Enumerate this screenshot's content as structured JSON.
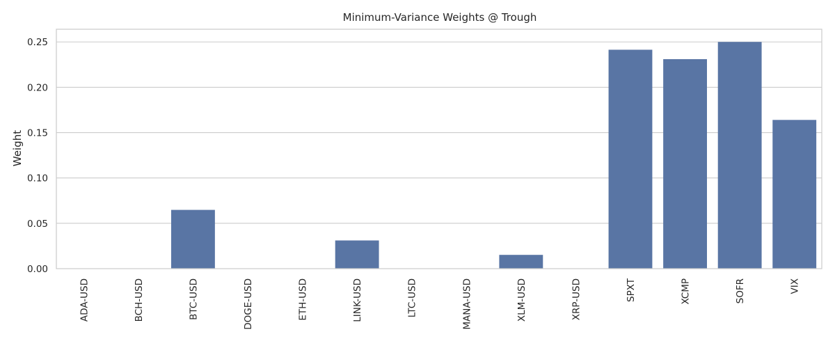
{
  "chart_data": {
    "type": "bar",
    "title": "Minimum-Variance Weights @ Trough",
    "xlabel": "",
    "ylabel": "Weight",
    "categories": [
      "ADA-USD",
      "BCH-USD",
      "BTC-USD",
      "DOGE-USD",
      "ETH-USD",
      "LINK-USD",
      "LTC-USD",
      "MANA-USD",
      "XLM-USD",
      "XRP-USD",
      "SPXT",
      "XCMP",
      "SOFR",
      "VIX"
    ],
    "values": [
      0.0,
      0.0,
      0.0648,
      0.0,
      0.0,
      0.0311,
      0.0,
      0.0,
      0.0152,
      0.0,
      0.2414,
      0.231,
      0.25,
      0.164
    ],
    "ylim": [
      0,
      0.264
    ],
    "yticks": [
      0.0,
      0.05,
      0.1,
      0.15,
      0.2,
      0.25
    ],
    "ytick_labels": [
      "0.00",
      "0.05",
      "0.10",
      "0.15",
      "0.20",
      "0.25"
    ],
    "bar_color": "#5975a4",
    "grid": true
  }
}
